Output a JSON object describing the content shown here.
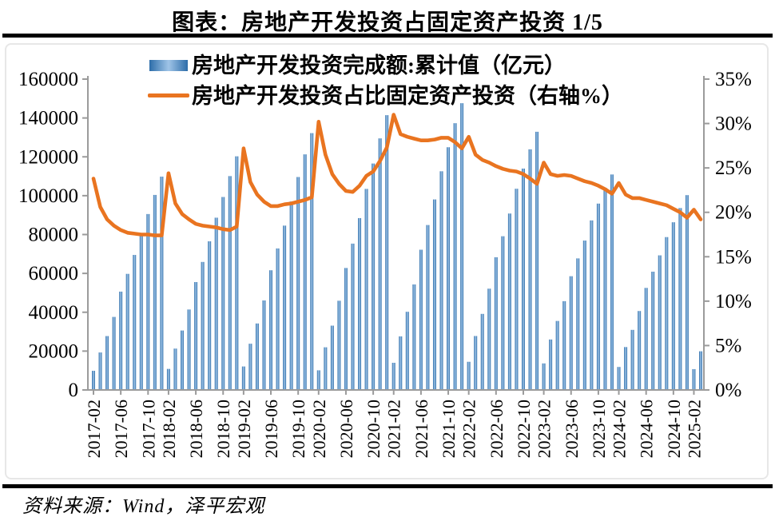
{
  "page": {
    "title": "图表：房地产开发投资占固定资产投资 1/5",
    "source": "资料来源：Wind，泽平宏观"
  },
  "legend": {
    "bars_label": "房地产开发投资完成额:累计值（亿元）",
    "line_label": "房地产开发投资占比固定资产投资（右轴%）"
  },
  "chart_data": {
    "type": "bar",
    "title": "图表：房地产开发投资占固定资产投资 1/5",
    "grid": false,
    "legend_position": "top-left",
    "categories": [
      "2017-02",
      "2017-03",
      "2017-04",
      "2017-05",
      "2017-06",
      "2017-07",
      "2017-08",
      "2017-09",
      "2017-10",
      "2017-11",
      "2017-12",
      "2018-02",
      "2018-03",
      "2018-04",
      "2018-05",
      "2018-06",
      "2018-07",
      "2018-08",
      "2018-09",
      "2018-10",
      "2018-11",
      "2018-12",
      "2019-02",
      "2019-03",
      "2019-04",
      "2019-05",
      "2019-06",
      "2019-07",
      "2019-08",
      "2019-09",
      "2019-10",
      "2019-11",
      "2019-12",
      "2020-02",
      "2020-03",
      "2020-04",
      "2020-05",
      "2020-06",
      "2020-07",
      "2020-08",
      "2020-09",
      "2020-10",
      "2020-11",
      "2020-12",
      "2021-02",
      "2021-03",
      "2021-04",
      "2021-05",
      "2021-06",
      "2021-07",
      "2021-08",
      "2021-09",
      "2021-10",
      "2021-11",
      "2021-12",
      "2022-02",
      "2022-03",
      "2022-04",
      "2022-05",
      "2022-06",
      "2022-07",
      "2022-08",
      "2022-09",
      "2022-10",
      "2022-11",
      "2022-12",
      "2023-02",
      "2023-03",
      "2023-04",
      "2023-05",
      "2023-06",
      "2023-07",
      "2023-08",
      "2023-09",
      "2023-10",
      "2023-11",
      "2023-12",
      "2024-02",
      "2024-03",
      "2024-04",
      "2024-05",
      "2024-06",
      "2024-07",
      "2024-08",
      "2024-09",
      "2024-10",
      "2024-11",
      "2024-12",
      "2025-02",
      "2025-03"
    ],
    "series": [
      {
        "name": "房地产开发投资完成额:累计值（亿元）",
        "type": "bar",
        "axis": "left",
        "values": [
          9854,
          19292,
          27732,
          37595,
          50610,
          59761,
          69494,
          80644,
          90544,
          100387,
          109799,
          10831,
          21291,
          30592,
          41420,
          55531,
          65886,
          76519,
          88665,
          99325,
          110083,
          120264,
          12090,
          23803,
          34217,
          46075,
          61609,
          72843,
          84589,
          97008,
          109603,
          121265,
          132194,
          10115,
          21963,
          33103,
          45920,
          62780,
          75325,
          88454,
          103484,
          116556,
          129492,
          141443,
          13986,
          27576,
          40240,
          54318,
          72179,
          84895,
          98060,
          112568,
          124934,
          137314,
          147602,
          14499,
          27765,
          39154,
          52134,
          68314,
          79125,
          90809,
          103559,
          113945,
          123863,
          132895,
          13669,
          25974,
          35514,
          45701,
          58550,
          67717,
          76900,
          87269,
          95922,
          104045,
          110913,
          11842,
          22082,
          30928,
          40632,
          52529,
          60877,
          69284,
          78680,
          86309,
          93634,
          100280,
          10720,
          19904
        ]
      },
      {
        "name": "房地产开发投资占比固定资产投资（右轴%）",
        "type": "line",
        "axis": "right",
        "values": [
          23.8,
          20.6,
          19.2,
          18.5,
          18.0,
          17.7,
          17.6,
          17.5,
          17.5,
          17.4,
          17.4,
          24.4,
          21.0,
          19.8,
          19.2,
          18.7,
          18.5,
          18.4,
          18.3,
          18.1,
          18.0,
          18.4,
          27.2,
          23.4,
          22.0,
          21.2,
          20.7,
          20.7,
          20.9,
          21.0,
          21.2,
          21.4,
          21.7,
          30.2,
          26.5,
          24.3,
          23.2,
          22.4,
          22.3,
          23.0,
          24.1,
          24.6,
          25.8,
          27.3,
          31.0,
          28.8,
          28.5,
          28.3,
          28.1,
          28.1,
          28.2,
          28.4,
          28.4,
          27.9,
          27.2,
          28.5,
          26.5,
          25.9,
          25.6,
          25.2,
          24.9,
          24.7,
          24.6,
          24.3,
          23.8,
          23.2,
          25.6,
          24.3,
          24.1,
          24.2,
          24.1,
          23.8,
          23.5,
          23.3,
          23.0,
          22.6,
          22.1,
          23.3,
          22.0,
          21.6,
          21.6,
          21.4,
          21.2,
          21.0,
          20.8,
          20.4,
          20.0,
          19.4,
          20.3,
          19.2
        ]
      }
    ],
    "left_axis": {
      "min": 0,
      "max": 160000,
      "ticks": [
        "0",
        "20000",
        "40000",
        "60000",
        "80000",
        "100000",
        "120000",
        "140000",
        "160000"
      ]
    },
    "right_axis": {
      "min": 0,
      "max": 35,
      "ticks": [
        "0%",
        "5%",
        "10%",
        "15%",
        "20%",
        "25%",
        "30%",
        "35%"
      ]
    },
    "x_tick_indices": [
      0,
      4,
      8,
      11,
      15,
      19,
      22,
      26,
      30,
      33,
      37,
      41,
      44,
      48,
      52,
      55,
      59,
      63,
      66,
      70,
      74,
      77,
      81,
      85,
      88
    ],
    "style": {
      "bar_edge_color": "#2d6da9",
      "bar_center_color": "#9fc4e7",
      "line_color": "#e97420",
      "axis_color": "#9b9b9b",
      "rule_color": "#000000",
      "frame_color": "#e7e7e7"
    }
  }
}
